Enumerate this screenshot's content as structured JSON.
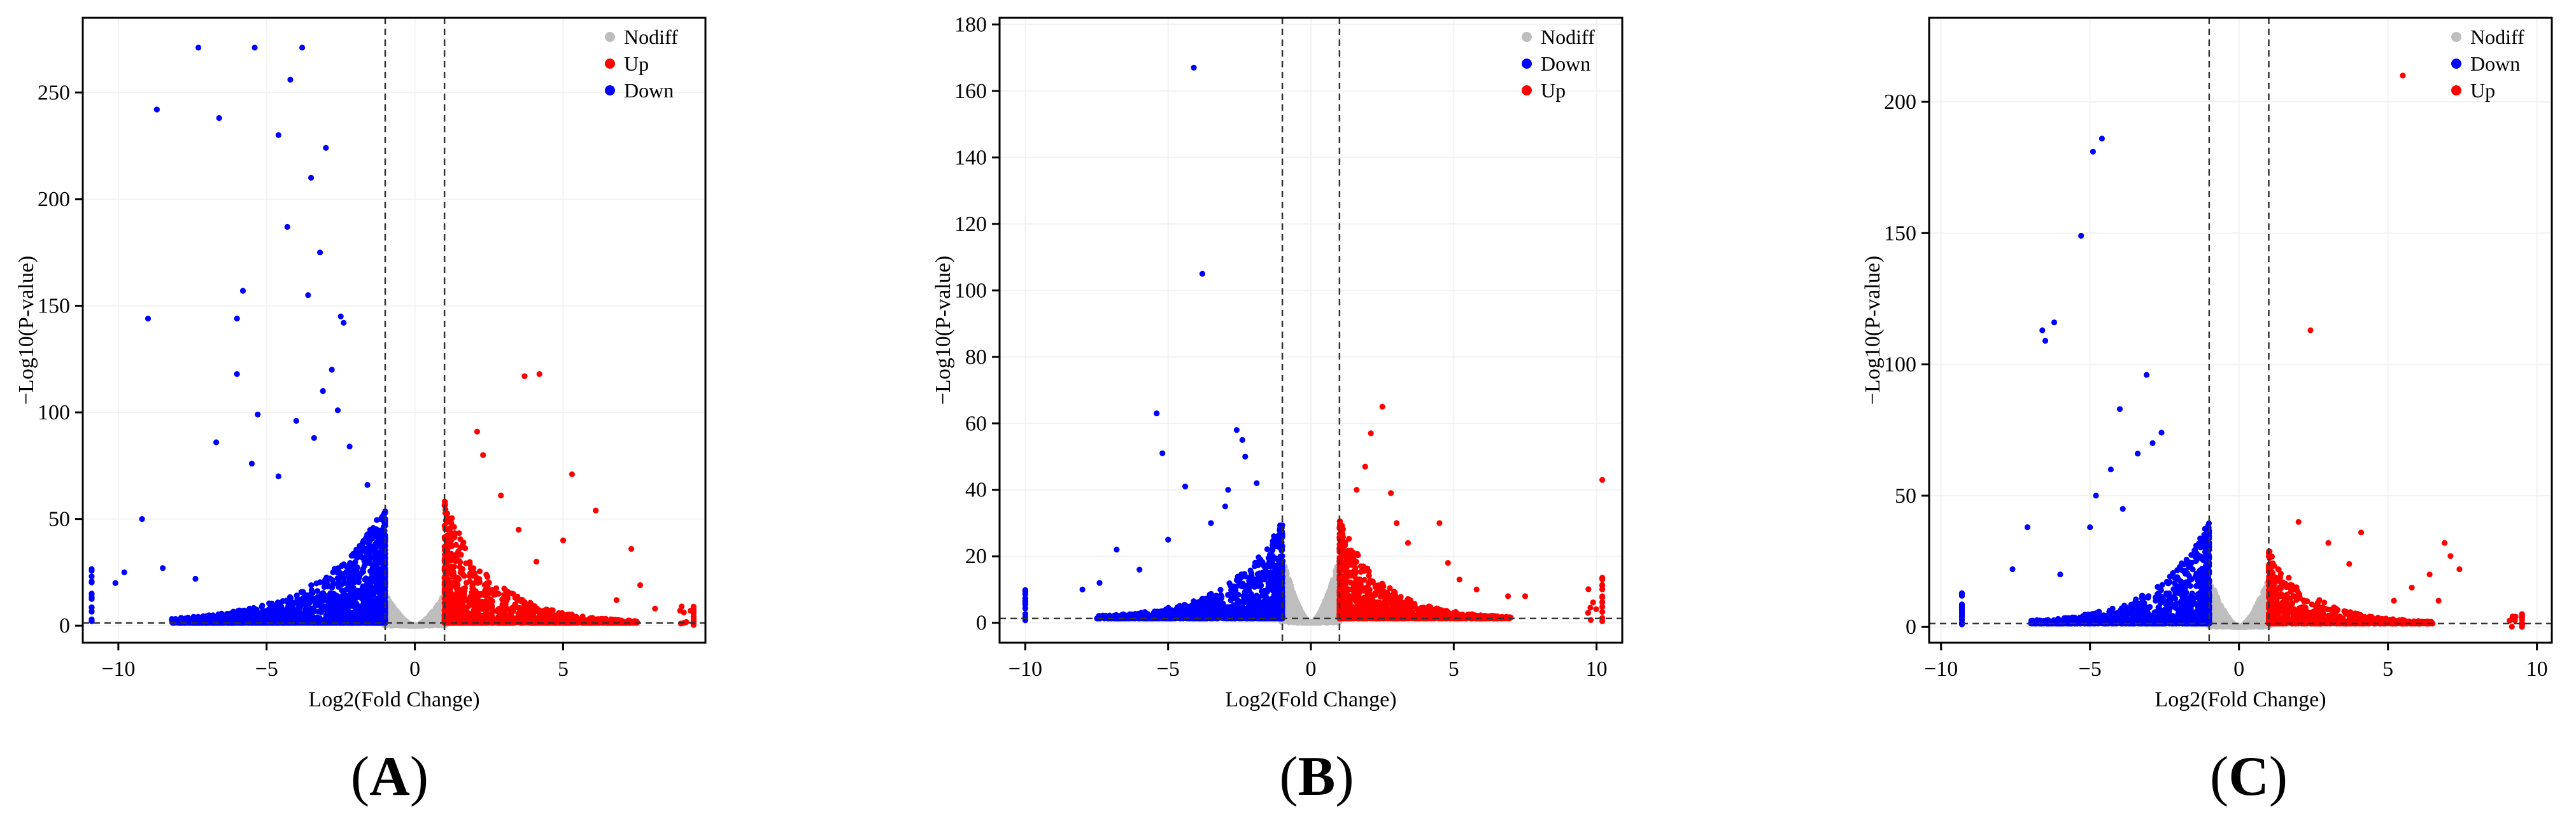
{
  "figure": {
    "panels": [
      {
        "letter_open": "(",
        "letter": "A",
        "letter_close": ")"
      },
      {
        "letter_open": "(",
        "letter": "B",
        "letter_close": ")"
      },
      {
        "letter_open": "(",
        "letter": "C",
        "letter_close": ")"
      }
    ]
  },
  "chart_data": [
    {
      "type": "scatter",
      "subtype": "volcano",
      "panel": "A",
      "xlabel": "Log2(Fold Change)",
      "ylabel": "−Log10(P-value)",
      "xlim": [
        -11.2,
        9.8
      ],
      "ylim": [
        -8,
        285
      ],
      "xticks": [
        -10,
        -5,
        0,
        5
      ],
      "yticks": [
        0,
        50,
        100,
        150,
        200,
        250
      ],
      "grid": true,
      "vlines": [
        -1,
        1
      ],
      "hline": 1.3,
      "legend_position": "top-right",
      "legend": [
        {
          "name": "Nodiff",
          "color": "#bebebe"
        },
        {
          "name": "Up",
          "color": "#ff0000"
        },
        {
          "name": "Down",
          "color": "#0000ff"
        }
      ],
      "highlight_points": {
        "Down": [
          [
            -7.3,
            271
          ],
          [
            -5.4,
            271
          ],
          [
            -3.8,
            271
          ],
          [
            -8.7,
            242
          ],
          [
            -6.6,
            238
          ],
          [
            -4.2,
            256
          ],
          [
            -4.6,
            230
          ],
          [
            -3.0,
            224
          ],
          [
            -3.5,
            210
          ],
          [
            -4.3,
            187
          ],
          [
            -3.2,
            175
          ],
          [
            -5.8,
            157
          ],
          [
            -3.6,
            155
          ],
          [
            -6.0,
            144
          ],
          [
            -2.5,
            145
          ],
          [
            -9.0,
            144
          ],
          [
            -2.4,
            142
          ],
          [
            -6.0,
            118
          ],
          [
            -2.8,
            120
          ],
          [
            -5.3,
            99
          ],
          [
            -4.0,
            96
          ],
          [
            -3.1,
            110
          ],
          [
            -2.6,
            101
          ],
          [
            -9.2,
            50
          ],
          [
            -6.7,
            86
          ],
          [
            -5.5,
            76
          ],
          [
            -4.6,
            70
          ],
          [
            -8.5,
            27
          ],
          [
            -9.8,
            25
          ],
          [
            -10.1,
            20
          ],
          [
            -7.4,
            22
          ],
          [
            -3.4,
            88
          ],
          [
            -2.2,
            84
          ],
          [
            -1.6,
            66
          ]
        ],
        "Up": [
          [
            4.2,
            118
          ],
          [
            3.7,
            117
          ],
          [
            2.1,
            91
          ],
          [
            2.3,
            80
          ],
          [
            5.3,
            71
          ],
          [
            2.9,
            61
          ],
          [
            6.1,
            54
          ],
          [
            7.3,
            36
          ],
          [
            7.6,
            19
          ],
          [
            5.0,
            40
          ],
          [
            3.5,
            45
          ],
          [
            4.1,
            30
          ],
          [
            6.8,
            12
          ],
          [
            8.1,
            8
          ],
          [
            9.0,
            9
          ],
          [
            9.3,
            7
          ]
        ],
        "Nodiff": []
      },
      "extremes": {
        "Down_x": -10.9,
        "Up_x": 9.4,
        "Down_max": 28,
        "Up_max": 9
      },
      "bulk": {
        "Down": {
          "count": 2300,
          "x_range": [
            -8.2,
            -1
          ],
          "y_peak": 55,
          "y_decay": 2.2
        },
        "Up": {
          "count": 1350,
          "x_range": [
            1,
            7.5
          ],
          "y_peak": 58,
          "y_decay": 1.6
        },
        "Nodiff": {
          "count": 1500,
          "y_max": 15
        }
      }
    },
    {
      "type": "scatter",
      "subtype": "volcano",
      "panel": "B",
      "xlabel": "Log2(Fold Change)",
      "ylabel": "−Log10(P-value)",
      "xlim": [
        -10.9,
        10.9
      ],
      "ylim": [
        -6,
        182
      ],
      "xticks": [
        -10,
        -5,
        0,
        5,
        10
      ],
      "yticks": [
        0,
        20,
        40,
        60,
        80,
        100,
        120,
        140,
        160,
        180
      ],
      "grid": true,
      "vlines": [
        -1,
        1
      ],
      "hline": 1.3,
      "legend_position": "top-right",
      "legend": [
        {
          "name": "Nodiff",
          "color": "#bebebe"
        },
        {
          "name": "Down",
          "color": "#0000ff"
        },
        {
          "name": "Up",
          "color": "#ff0000"
        }
      ],
      "highlight_points": {
        "Down": [
          [
            -4.1,
            167
          ],
          [
            -3.8,
            105
          ],
          [
            -5.4,
            63
          ],
          [
            -5.2,
            51
          ],
          [
            -2.6,
            58
          ],
          [
            -2.4,
            55
          ],
          [
            -2.3,
            50
          ],
          [
            -1.9,
            42
          ],
          [
            -2.9,
            40
          ],
          [
            -4.4,
            41
          ],
          [
            -3.0,
            35
          ],
          [
            -6.8,
            22
          ],
          [
            -7.4,
            12
          ],
          [
            -8.0,
            10
          ],
          [
            -6.0,
            16
          ],
          [
            -5.0,
            25
          ],
          [
            -3.5,
            30
          ]
        ],
        "Up": [
          [
            2.5,
            65
          ],
          [
            2.1,
            57
          ],
          [
            1.9,
            47
          ],
          [
            2.8,
            39
          ],
          [
            1.6,
            40
          ],
          [
            4.5,
            30
          ],
          [
            3.4,
            24
          ],
          [
            4.8,
            18
          ],
          [
            5.8,
            10
          ],
          [
            6.9,
            8
          ],
          [
            7.5,
            8
          ],
          [
            10.2,
            43
          ],
          [
            5.2,
            13
          ],
          [
            3.0,
            30
          ]
        ],
        "Nodiff": []
      },
      "extremes": {
        "Down_x": -10,
        "Up_x": 10.2,
        "Down_max": 10,
        "Up_max": 14
      },
      "bulk": {
        "Down": {
          "count": 1500,
          "x_range": [
            -7.5,
            -1
          ],
          "y_peak": 30,
          "y_decay": 1.8
        },
        "Up": {
          "count": 1250,
          "x_range": [
            1,
            7
          ],
          "y_peak": 30,
          "y_decay": 1.5
        },
        "Nodiff": {
          "count": 1400,
          "y_max": 20
        }
      }
    },
    {
      "type": "scatter",
      "subtype": "volcano",
      "panel": "C",
      "xlabel": "Log2(Fold Change)",
      "ylabel": "−Log10(P-value)",
      "xlim": [
        -10.4,
        10.5
      ],
      "ylim": [
        -6,
        232
      ],
      "xticks": [
        -10,
        -5,
        0,
        5,
        10
      ],
      "yticks": [
        0,
        50,
        100,
        150,
        200
      ],
      "grid": true,
      "vlines": [
        -1,
        1
      ],
      "hline": 1.3,
      "legend_position": "top-right",
      "legend": [
        {
          "name": "Nodiff",
          "color": "#bebebe"
        },
        {
          "name": "Down",
          "color": "#0000ff"
        },
        {
          "name": "Up",
          "color": "#ff0000"
        }
      ],
      "highlight_points": {
        "Down": [
          [
            -4.6,
            186
          ],
          [
            -4.9,
            181
          ],
          [
            -5.3,
            149
          ],
          [
            -6.2,
            116
          ],
          [
            -6.6,
            113
          ],
          [
            -6.5,
            109
          ],
          [
            -3.1,
            96
          ],
          [
            -4.0,
            83
          ],
          [
            -2.6,
            74
          ],
          [
            -2.9,
            70
          ],
          [
            -3.4,
            66
          ],
          [
            -4.3,
            60
          ],
          [
            -4.8,
            50
          ],
          [
            -5.0,
            38
          ],
          [
            -7.1,
            38
          ],
          [
            -7.6,
            22
          ],
          [
            -6.0,
            20
          ],
          [
            -3.9,
            45
          ]
        ],
        "Up": [
          [
            5.5,
            210
          ],
          [
            2.4,
            113
          ],
          [
            2.0,
            40
          ],
          [
            3.0,
            32
          ],
          [
            4.1,
            36
          ],
          [
            6.9,
            32
          ],
          [
            7.1,
            27
          ],
          [
            7.4,
            22
          ],
          [
            6.4,
            20
          ],
          [
            5.8,
            15
          ],
          [
            6.7,
            10
          ],
          [
            5.2,
            10
          ],
          [
            3.7,
            24
          ]
        ],
        "Nodiff": []
      },
      "extremes": {
        "Down_x": -9.3,
        "Up_x": 9.5,
        "Down_max": 14,
        "Up_max": 5
      },
      "bulk": {
        "Down": {
          "count": 1300,
          "x_range": [
            -7,
            -1
          ],
          "y_peak": 40,
          "y_decay": 1.7
        },
        "Up": {
          "count": 850,
          "x_range": [
            1,
            6.5
          ],
          "y_peak": 28,
          "y_decay": 1.5
        },
        "Nodiff": {
          "count": 1200,
          "y_max": 19
        }
      }
    }
  ]
}
